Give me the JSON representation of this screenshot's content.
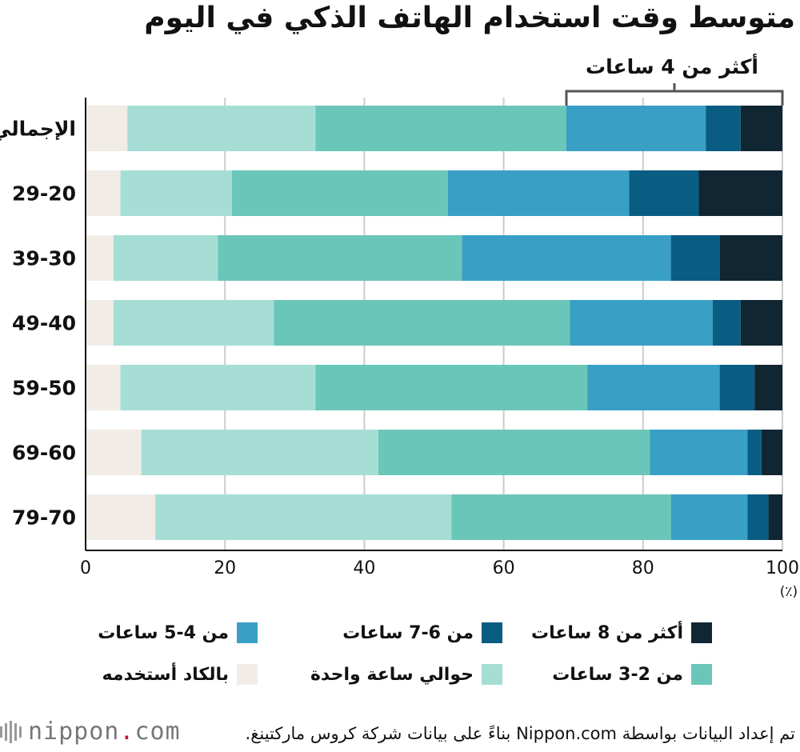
{
  "title": "متوسط وقت استخدام الهاتف الذكي في اليوم",
  "annotation": "أكثر من 4 ساعات",
  "unit": "(٪)",
  "source": "تم إعداد البيانات بواسطة Nippon.com بناءً على بيانات شركة كروس ماركتينغ.",
  "logo_text": "nippon.com",
  "chart_data": {
    "type": "bar",
    "orientation": "horizontal",
    "stacked": true,
    "xlim": [
      0,
      100
    ],
    "x_ticks": [
      "0",
      "20",
      "40",
      "60",
      "80",
      "100"
    ],
    "grid": true,
    "legend_position": "bottom",
    "bracket_range": [
      69,
      100
    ],
    "categories": [
      "الإجمالي",
      "29-20",
      "39-30",
      "49-40",
      "59-50",
      "69-60",
      "79-70"
    ],
    "series": [
      {
        "name": "بالكاد أستخدمه",
        "color": "#f1ede6",
        "values": [
          6,
          5,
          4,
          4,
          5,
          8,
          10
        ]
      },
      {
        "name": "حوالي ساعة واحدة",
        "color": "#a6ded6",
        "values": [
          27,
          16,
          15,
          23,
          28,
          34,
          42.5
        ]
      },
      {
        "name": "من 2-3 ساعات",
        "color": "#6bc6ba",
        "values": [
          36,
          31,
          35,
          42.5,
          39,
          39,
          31.5
        ]
      },
      {
        "name": "من 4-5 ساعات",
        "color": "#399fc5",
        "values": [
          20,
          26,
          30,
          20.5,
          19,
          14,
          11
        ]
      },
      {
        "name": "من 6-7 ساعات",
        "color": "#0a5d82",
        "values": [
          5,
          10,
          7,
          4,
          5,
          2,
          3
        ]
      },
      {
        "name": "أكثر من 8 ساعات",
        "color": "#112633",
        "values": [
          6,
          12,
          9,
          6,
          4,
          3,
          2
        ]
      }
    ]
  },
  "legend": [
    {
      "label": "أكثر من 8 ساعات",
      "color": "#112633"
    },
    {
      "label": "من 6-7 ساعات",
      "color": "#0a5d82"
    },
    {
      "label": "من 4-5 ساعات",
      "color": "#399fc5"
    },
    {
      "label": "من 2-3 ساعات",
      "color": "#6bc6ba"
    },
    {
      "label": "حوالي ساعة واحدة",
      "color": "#a6ded6"
    },
    {
      "label": "بالكاد أستخدمه",
      "color": "#f1ede6"
    }
  ]
}
